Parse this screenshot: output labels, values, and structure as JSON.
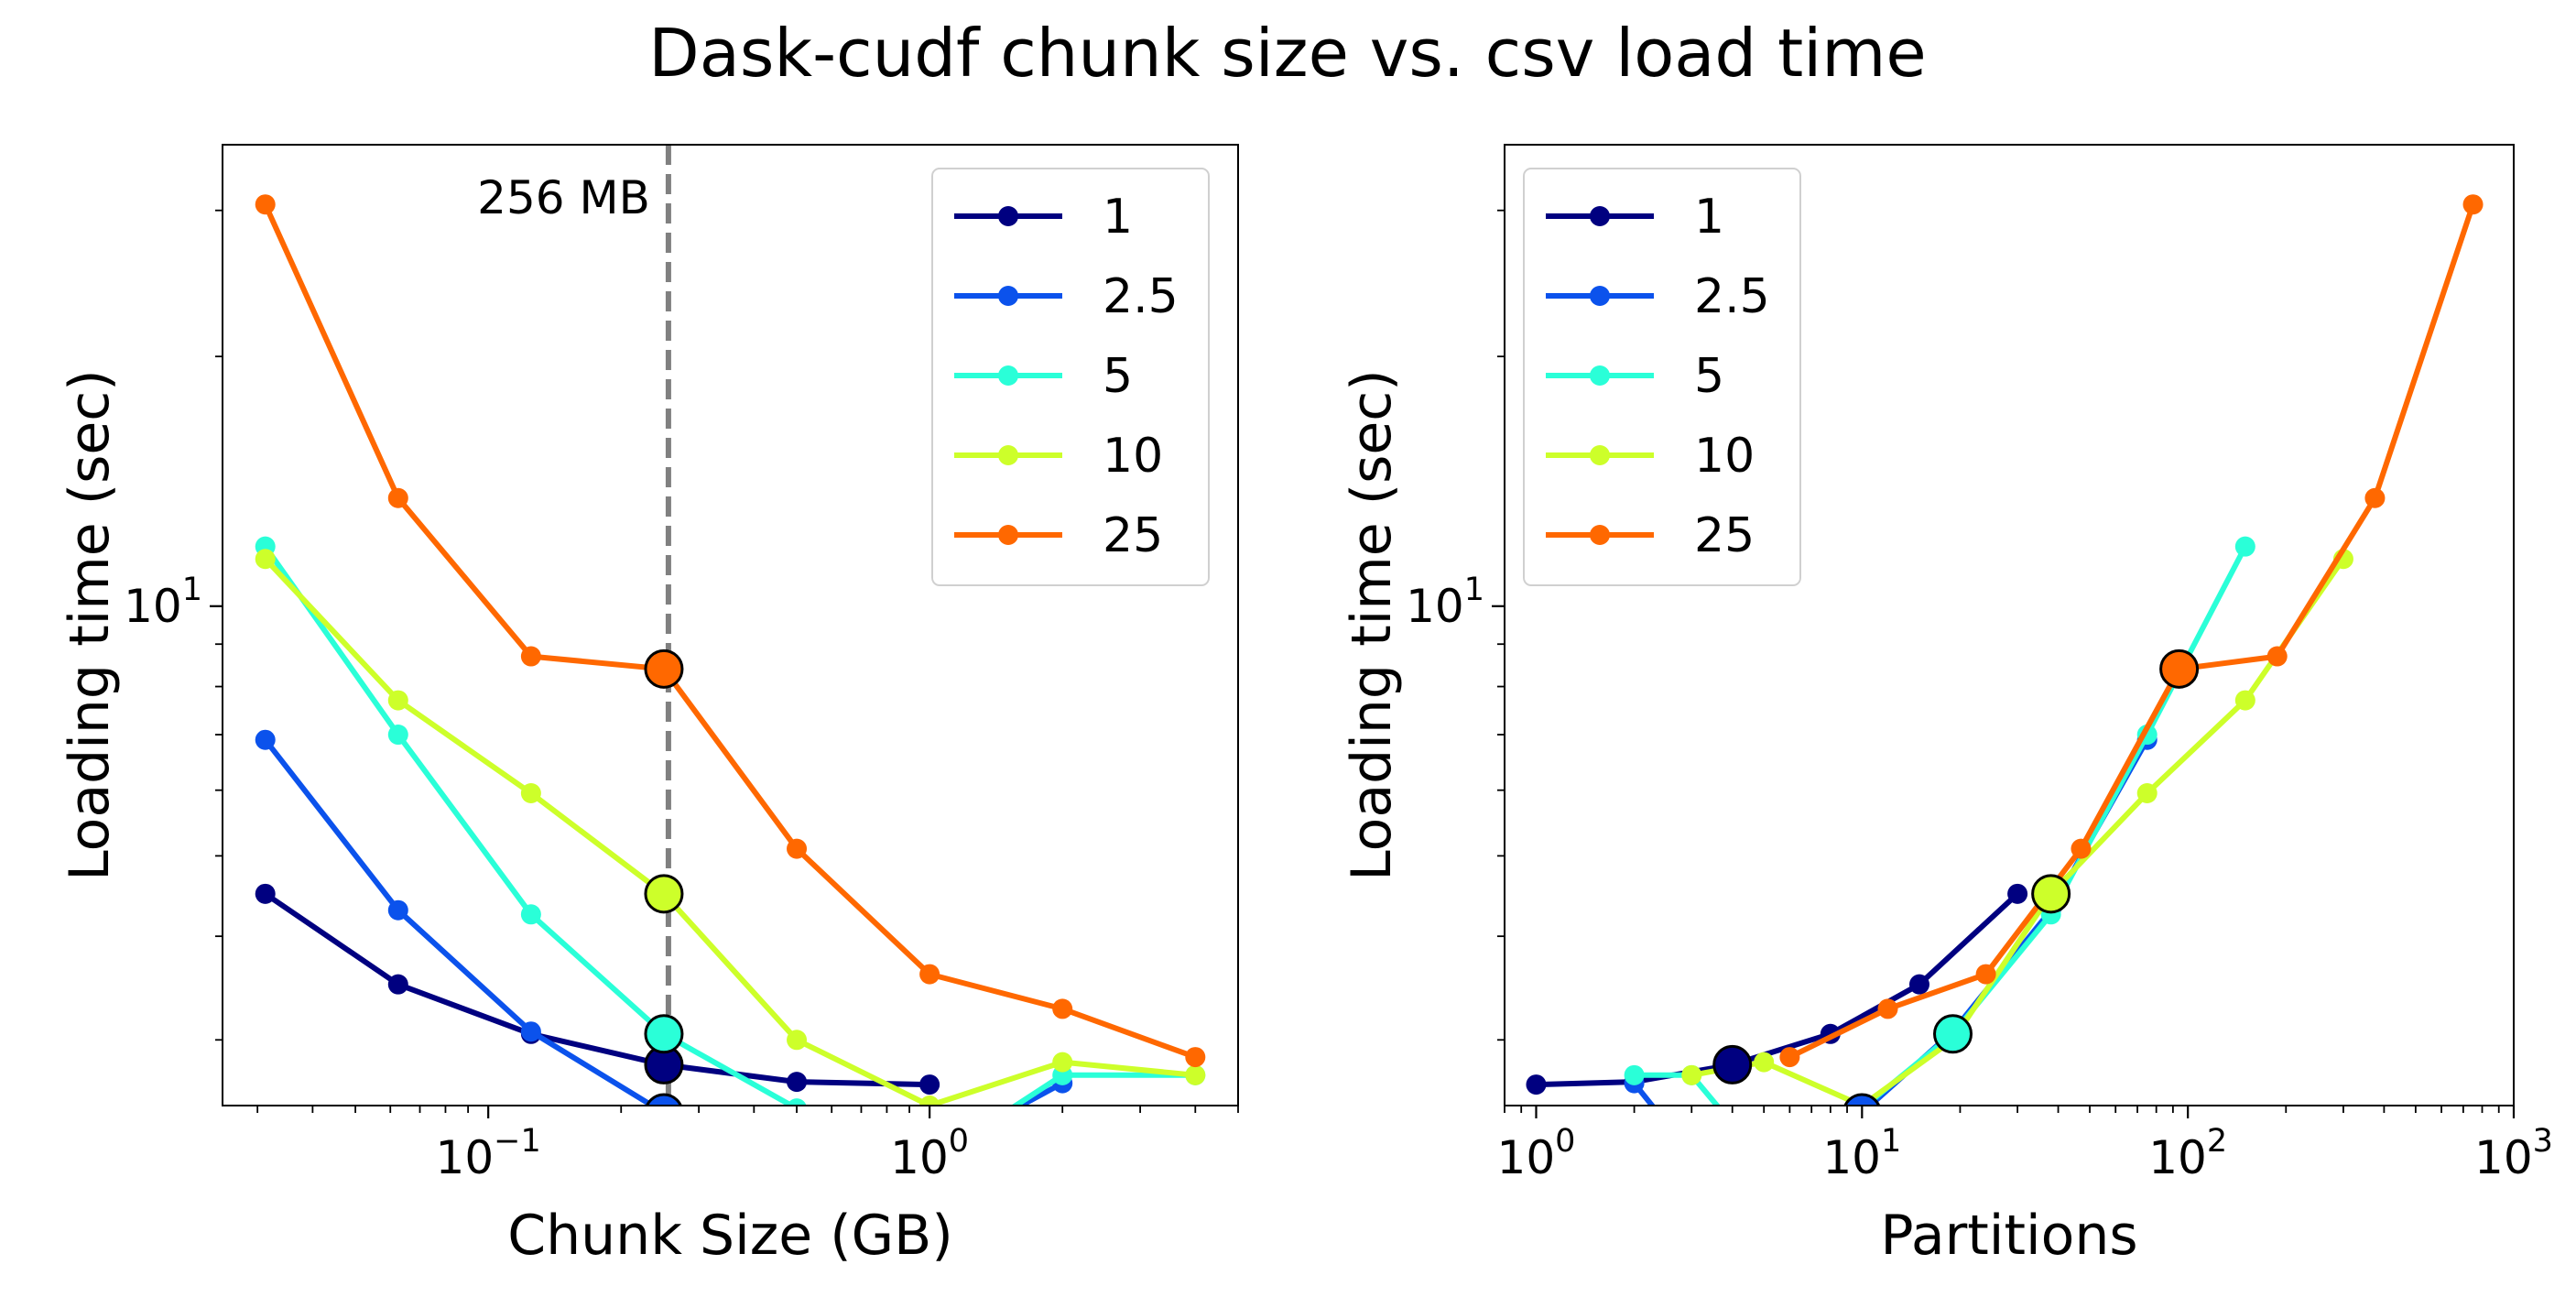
{
  "figure": {
    "title": "Dask-cudf chunk size vs. csv load time"
  },
  "chart_data": [
    {
      "type": "line",
      "xlabel": "Chunk Size (GB)",
      "ylabel": "Loading time (sec)",
      "xscale": "log",
      "yscale": "log",
      "xlim": [
        0.025,
        5
      ],
      "ylim": [
        2.5,
        36
      ],
      "xticks": [
        {
          "value": 0.1,
          "base": "10",
          "exp": "−1"
        },
        {
          "value": 1,
          "base": "10",
          "exp": "0"
        }
      ],
      "yticks": [
        {
          "value": 10,
          "base": "10",
          "exp": "1"
        }
      ],
      "grid": false,
      "legend": "upper-right",
      "reference_line": {
        "x": 0.256,
        "label": "256 MB",
        "color": "#808080",
        "style": "dashed"
      },
      "series": [
        {
          "name": "1",
          "color": "#000080",
          "x": [
            0.03125,
            0.0625,
            0.125,
            0.25,
            0.5,
            1
          ],
          "y": [
            4.5,
            3.5,
            3.05,
            2.8,
            2.67,
            2.65
          ],
          "highlight": {
            "x": 0.25,
            "y": 2.8
          }
        },
        {
          "name": "2.5",
          "color": "#0b52ec",
          "x": [
            0.03125,
            0.0625,
            0.125,
            0.25,
            0.5,
            1,
            2
          ],
          "y": [
            6.9,
            4.3,
            3.07,
            2.45,
            2.18,
            2.18,
            2.66
          ],
          "highlight": {
            "x": 0.25,
            "y": 2.45
          }
        },
        {
          "name": "5",
          "color": "#2affd8",
          "x": [
            0.03125,
            0.0625,
            0.125,
            0.25,
            0.5,
            1,
            2,
            4
          ],
          "y": [
            11.8,
            7.0,
            4.25,
            3.05,
            2.48,
            2.14,
            2.72,
            2.72
          ],
          "highlight": {
            "x": 0.25,
            "y": 3.05
          }
        },
        {
          "name": "10",
          "color": "#cdff2a",
          "x": [
            0.03125,
            0.0625,
            0.125,
            0.25,
            0.5,
            1,
            2,
            4
          ],
          "y": [
            11.4,
            7.7,
            5.95,
            4.5,
            3.0,
            2.5,
            2.82,
            2.72
          ],
          "highlight": {
            "x": 0.25,
            "y": 4.5
          }
        },
        {
          "name": "25",
          "color": "#ff6800",
          "x": [
            0.03125,
            0.0625,
            0.125,
            0.25,
            0.5,
            1,
            2,
            4
          ],
          "y": [
            30.5,
            13.5,
            8.7,
            8.4,
            5.1,
            3.6,
            3.27,
            2.86
          ],
          "highlight": {
            "x": 0.25,
            "y": 8.4
          }
        }
      ]
    },
    {
      "type": "line",
      "xlabel": "Partitions",
      "ylabel": "Loading time (sec)",
      "xscale": "log",
      "yscale": "log",
      "xlim": [
        0.8,
        1000
      ],
      "ylim": [
        2.5,
        36
      ],
      "xticks": [
        {
          "value": 1,
          "base": "10",
          "exp": "0"
        },
        {
          "value": 10,
          "base": "10",
          "exp": "1"
        },
        {
          "value": 100,
          "base": "10",
          "exp": "2"
        },
        {
          "value": 1000,
          "base": "10",
          "exp": "3"
        }
      ],
      "yticks": [
        {
          "value": 10,
          "base": "10",
          "exp": "1"
        }
      ],
      "grid": false,
      "legend": "upper-left",
      "series": [
        {
          "name": "1",
          "color": "#000080",
          "x": [
            1,
            2,
            4,
            8,
            15,
            30
          ],
          "y": [
            2.65,
            2.67,
            2.8,
            3.05,
            3.5,
            4.5
          ],
          "highlight": {
            "x": 4,
            "y": 2.8
          }
        },
        {
          "name": "2.5",
          "color": "#0b52ec",
          "x": [
            2,
            3,
            5,
            10,
            19,
            38,
            75
          ],
          "y": [
            2.66,
            2.18,
            2.18,
            2.45,
            3.07,
            4.3,
            6.9
          ],
          "highlight": {
            "x": 10,
            "y": 2.45
          }
        },
        {
          "name": "5",
          "color": "#2affd8",
          "x": [
            2,
            3,
            5,
            10,
            19,
            38,
            75,
            150
          ],
          "y": [
            2.72,
            2.72,
            2.14,
            2.48,
            3.05,
            4.25,
            7.0,
            11.8
          ],
          "highlight": {
            "x": 19,
            "y": 3.05
          }
        },
        {
          "name": "10",
          "color": "#cdff2a",
          "x": [
            3,
            5,
            10,
            19,
            38,
            75,
            150,
            300
          ],
          "y": [
            2.72,
            2.82,
            2.5,
            3.0,
            4.5,
            5.95,
            7.7,
            11.4
          ],
          "highlight": {
            "x": 38,
            "y": 4.5
          }
        },
        {
          "name": "25",
          "color": "#ff6800",
          "x": [
            6,
            12,
            24,
            47,
            94,
            188,
            375,
            750
          ],
          "y": [
            2.86,
            3.27,
            3.6,
            5.1,
            8.4,
            8.7,
            13.5,
            30.5
          ],
          "highlight": {
            "x": 94,
            "y": 8.4
          }
        }
      ]
    }
  ]
}
